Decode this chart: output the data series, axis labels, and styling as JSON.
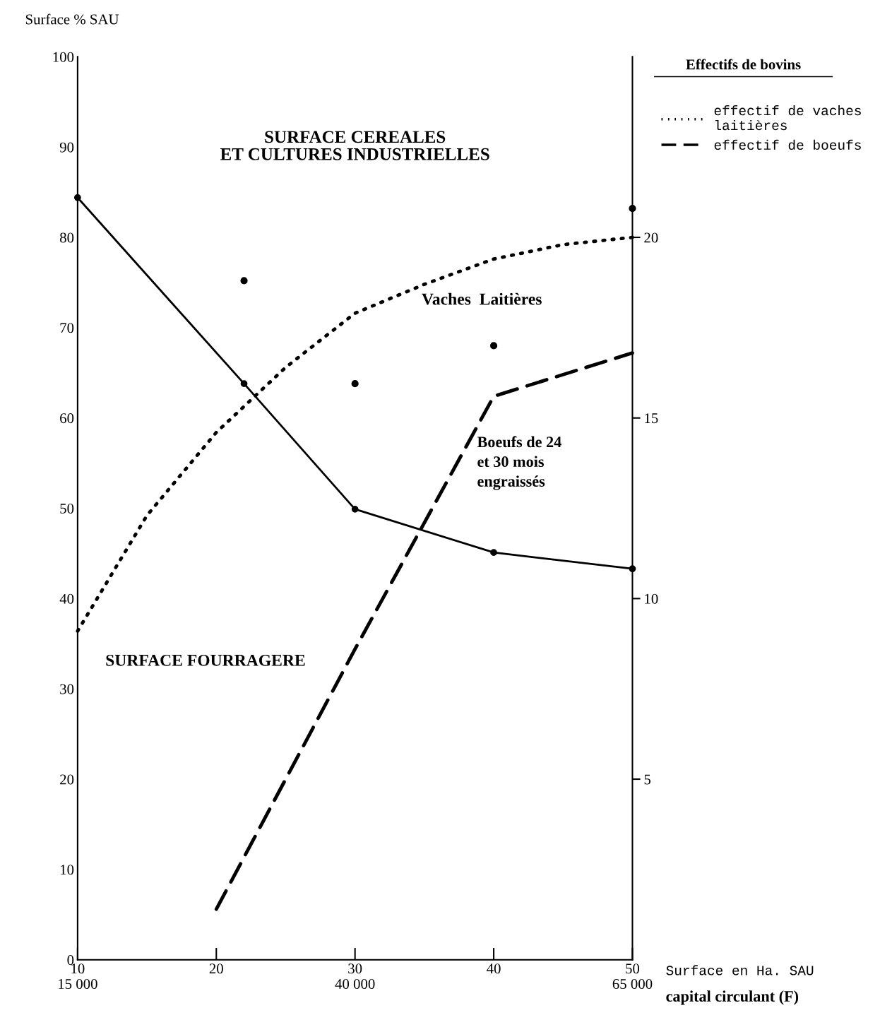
{
  "chart_data": {
    "type": "line",
    "ylabel": "Surface % SAU",
    "y2label": "Effectifs de bovins",
    "xlabel": "Surface en Ha. SAU",
    "xlim": [
      10,
      50
    ],
    "xticks": [
      {
        "value": 10,
        "label": "10\n15 000"
      },
      20,
      {
        "value": 30,
        "label": "30\n40 000"
      },
      40,
      {
        "value": 50,
        "label": "50\n65 000"
      }
    ],
    "ylim": [
      0,
      100
    ],
    "yticks": [
      0,
      10,
      20,
      30,
      40,
      50,
      60,
      70,
      80,
      90,
      100
    ],
    "y2lim": [
      0,
      25
    ],
    "y2ticks": [
      5,
      10,
      15,
      20
    ],
    "grid": false,
    "legend": "top right",
    "series": [
      {
        "color": "#000000",
        "marker": "circle",
        "line_style": "solid",
        "x": [
          10,
          22,
          30,
          40,
          50
        ],
        "values": [
          84.4,
          63.8,
          49.9,
          45.1,
          43.3
        ]
      },
      {
        "type": "scatter",
        "color": "#000000",
        "marker": "circle",
        "x": [
          22,
          30,
          40,
          50
        ],
        "values": [
          75.2,
          63.8,
          68.0,
          83.2
        ]
      },
      {
        "name": "effectif de vaches\nlaitières",
        "axis": "y2",
        "color": "#000000",
        "marker": "none",
        "line_style": "dotted",
        "x": [
          10,
          15,
          20,
          25,
          30,
          35,
          40,
          45,
          50
        ],
        "values": [
          9.1,
          12.3,
          14.6,
          16.4,
          17.9,
          18.7,
          19.4,
          19.8,
          20.0
        ]
      },
      {
        "name": "effectif de boeufs",
        "axis": "y2",
        "color": "#000000",
        "marker": "none",
        "line_style": "dashed",
        "x": [
          20,
          30,
          40,
          50
        ],
        "values": [
          1.4,
          8.6,
          15.6,
          16.8
        ]
      }
    ],
    "annotations": [
      "SURFACE CEREALES\nET CULTURES INDUSTRIELLES",
      "SURFACE FOURRAGERE",
      "Vaches  Laitières",
      "Boeufs de 24\net 30 mois\nengraissés",
      "capital circulant (F)"
    ]
  }
}
